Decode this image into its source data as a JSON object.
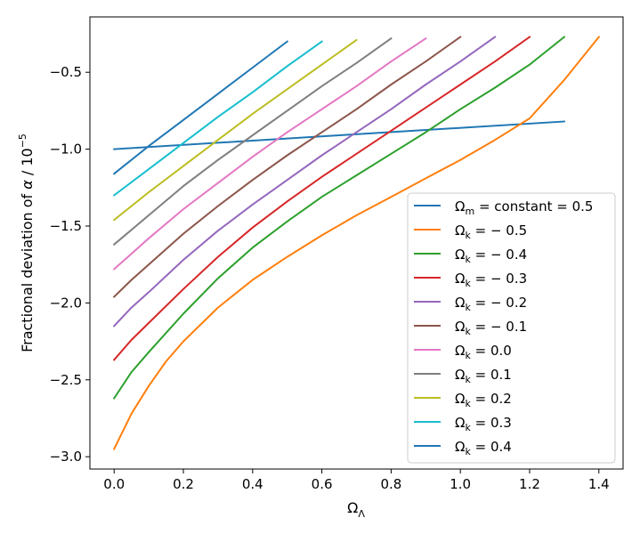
{
  "colors": {
    "blue": "#1f77b4",
    "orange": "#ff7f0e",
    "green": "#2ca02c",
    "red": "#d62728",
    "purple": "#9467bd",
    "brown": "#8c564b",
    "pink": "#e377c2",
    "gray": "#7f7f7f",
    "olive": "#bcbd22",
    "cyan": "#17becf"
  },
  "chart_data": {
    "type": "line",
    "title": "",
    "xlabel": "Ω_Λ",
    "ylabel": "Fractional deviation of α / 10⁻⁵",
    "xlim": [
      -0.07,
      1.47
    ],
    "ylim": [
      -3.08,
      -0.14
    ],
    "xticks": [
      0.0,
      0.2,
      0.4,
      0.6,
      0.8,
      1.0,
      1.2,
      1.4
    ],
    "yticks": [
      -3.0,
      -2.5,
      -2.0,
      -1.5,
      -1.0,
      -0.5
    ],
    "xtick_labels": [
      "0.0",
      "0.2",
      "0.4",
      "0.6",
      "0.8",
      "1.0",
      "1.2",
      "1.4"
    ],
    "ytick_labels": [
      "−3.0",
      "−2.5",
      "−2.0",
      "−1.5",
      "−1.0",
      "−0.5"
    ],
    "legend_position": "lower-right",
    "series": [
      {
        "name": "Ω_m = constant = 0.5",
        "color": "#1f77b4",
        "x": [
          0.0,
          0.65,
          1.3
        ],
        "y": [
          -1.0,
          -0.91,
          -0.82
        ]
      },
      {
        "name": "Ω_k = − 0.5",
        "color": "#ff7f0e",
        "x": [
          0.0,
          0.05,
          0.1,
          0.15,
          0.2,
          0.3,
          0.4,
          0.5,
          0.6,
          0.7,
          0.8,
          0.9,
          1.0,
          1.1,
          1.2,
          1.3,
          1.4
        ],
        "y": [
          -2.95,
          -2.72,
          -2.54,
          -2.38,
          -2.25,
          -2.03,
          -1.85,
          -1.7,
          -1.56,
          -1.43,
          -1.31,
          -1.19,
          -1.07,
          -0.94,
          -0.8,
          -0.55,
          -0.27
        ]
      },
      {
        "name": "Ω_k = − 0.4",
        "color": "#2ca02c",
        "x": [
          0.0,
          0.05,
          0.1,
          0.2,
          0.3,
          0.4,
          0.5,
          0.6,
          0.7,
          0.8,
          0.9,
          1.0,
          1.1,
          1.2,
          1.3
        ],
        "y": [
          -2.62,
          -2.45,
          -2.32,
          -2.07,
          -1.84,
          -1.64,
          -1.47,
          -1.31,
          -1.17,
          -1.03,
          -0.89,
          -0.74,
          -0.6,
          -0.45,
          -0.27
        ]
      },
      {
        "name": "Ω_k = − 0.3",
        "color": "#d62728",
        "x": [
          0.0,
          0.05,
          0.1,
          0.2,
          0.3,
          0.4,
          0.5,
          0.6,
          0.7,
          0.8,
          0.9,
          1.0,
          1.1,
          1.2
        ],
        "y": [
          -2.37,
          -2.24,
          -2.13,
          -1.91,
          -1.7,
          -1.51,
          -1.34,
          -1.18,
          -1.03,
          -0.88,
          -0.73,
          -0.58,
          -0.43,
          -0.27
        ]
      },
      {
        "name": "Ω_k = − 0.2",
        "color": "#9467bd",
        "x": [
          0.0,
          0.05,
          0.1,
          0.2,
          0.3,
          0.4,
          0.5,
          0.6,
          0.7,
          0.8,
          0.9,
          1.0,
          1.1
        ],
        "y": [
          -2.15,
          -2.03,
          -1.93,
          -1.72,
          -1.53,
          -1.36,
          -1.2,
          -1.04,
          -0.89,
          -0.74,
          -0.58,
          -0.43,
          -0.27
        ]
      },
      {
        "name": "Ω_k = − 0.1",
        "color": "#8c564b",
        "x": [
          0.0,
          0.05,
          0.1,
          0.2,
          0.3,
          0.4,
          0.5,
          0.6,
          0.7,
          0.8,
          0.9,
          1.0
        ],
        "y": [
          -1.96,
          -1.85,
          -1.75,
          -1.55,
          -1.37,
          -1.2,
          -1.04,
          -0.89,
          -0.74,
          -0.58,
          -0.43,
          -0.27
        ]
      },
      {
        "name": "Ω_k = 0.0",
        "color": "#e377c2",
        "x": [
          0.0,
          0.05,
          0.1,
          0.2,
          0.3,
          0.4,
          0.5,
          0.6,
          0.7,
          0.8,
          0.9
        ],
        "y": [
          -1.78,
          -1.68,
          -1.58,
          -1.39,
          -1.22,
          -1.05,
          -0.89,
          -0.74,
          -0.59,
          -0.43,
          -0.28
        ]
      },
      {
        "name": "Ω_k = 0.1",
        "color": "#7f7f7f",
        "x": [
          0.0,
          0.1,
          0.2,
          0.3,
          0.4,
          0.5,
          0.6,
          0.7,
          0.8
        ],
        "y": [
          -1.62,
          -1.43,
          -1.24,
          -1.07,
          -0.91,
          -0.75,
          -0.59,
          -0.44,
          -0.28
        ]
      },
      {
        "name": "Ω_k = 0.2",
        "color": "#bcbd22",
        "x": [
          0.0,
          0.1,
          0.2,
          0.3,
          0.4,
          0.5,
          0.6,
          0.7
        ],
        "y": [
          -1.46,
          -1.28,
          -1.11,
          -0.94,
          -0.77,
          -0.61,
          -0.45,
          -0.29
        ]
      },
      {
        "name": "Ω_k = 0.3",
        "color": "#17becf",
        "x": [
          0.0,
          0.1,
          0.2,
          0.3,
          0.4,
          0.5,
          0.6
        ],
        "y": [
          -1.3,
          -1.13,
          -0.96,
          -0.79,
          -0.63,
          -0.46,
          -0.3
        ]
      },
      {
        "name": "Ω_k = 0.4",
        "color": "#1f77b4",
        "x": [
          0.0,
          0.1,
          0.2,
          0.3,
          0.4,
          0.5
        ],
        "y": [
          -1.16,
          -0.98,
          -0.81,
          -0.64,
          -0.47,
          -0.3
        ]
      }
    ],
    "legend_entries": [
      {
        "base": "Ω",
        "sub": "m",
        "rest": " = constant = 0.5",
        "color": "#1f77b4"
      },
      {
        "base": "Ω",
        "sub": "k",
        "rest": " = − 0.5",
        "color": "#ff7f0e"
      },
      {
        "base": "Ω",
        "sub": "k",
        "rest": " = − 0.4",
        "color": "#2ca02c"
      },
      {
        "base": "Ω",
        "sub": "k",
        "rest": " = − 0.3",
        "color": "#d62728"
      },
      {
        "base": "Ω",
        "sub": "k",
        "rest": " = − 0.2",
        "color": "#9467bd"
      },
      {
        "base": "Ω",
        "sub": "k",
        "rest": " = − 0.1",
        "color": "#8c564b"
      },
      {
        "base": "Ω",
        "sub": "k",
        "rest": " = 0.0",
        "color": "#e377c2"
      },
      {
        "base": "Ω",
        "sub": "k",
        "rest": " = 0.1",
        "color": "#7f7f7f"
      },
      {
        "base": "Ω",
        "sub": "k",
        "rest": " = 0.2",
        "color": "#bcbd22"
      },
      {
        "base": "Ω",
        "sub": "k",
        "rest": " = 0.3",
        "color": "#17becf"
      },
      {
        "base": "Ω",
        "sub": "k",
        "rest": " = 0.4",
        "color": "#1f77b4"
      }
    ],
    "axis_labels": {
      "x": {
        "base": "Ω",
        "sub": "Λ"
      },
      "y": {
        "main": "Fractional deviation of ",
        "sym": "α",
        "mid": " / 10",
        "sup": "−5"
      }
    }
  }
}
